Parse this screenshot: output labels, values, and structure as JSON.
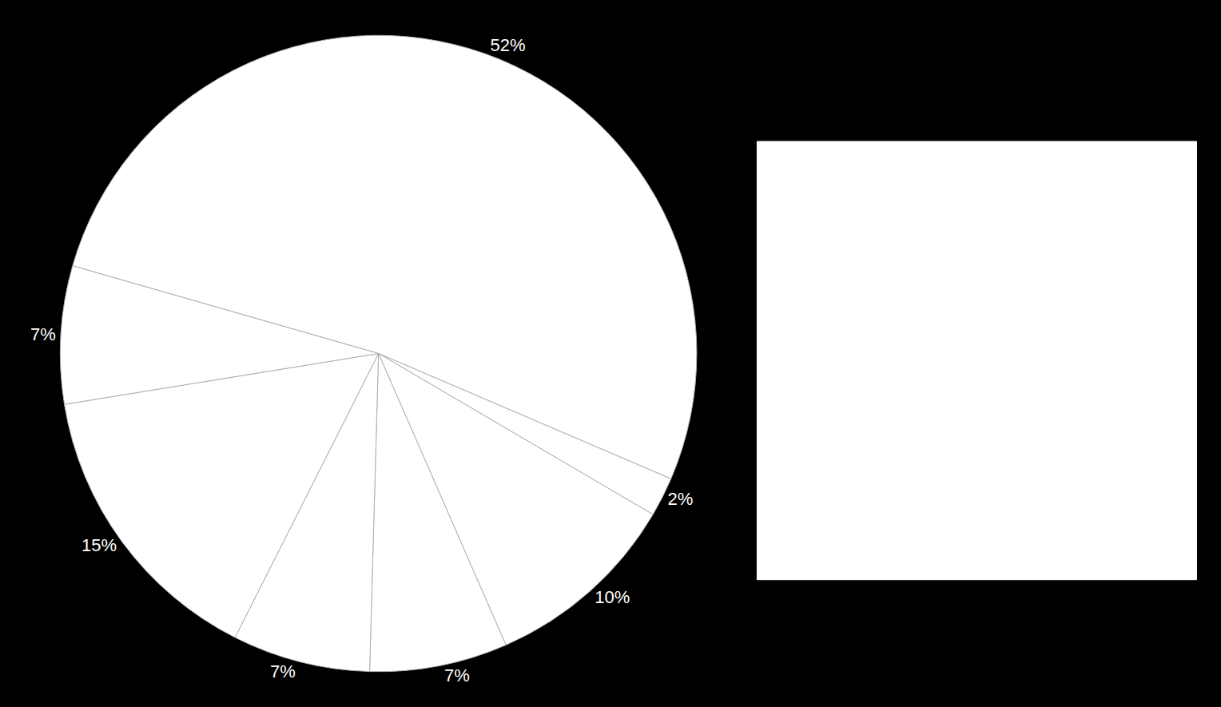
{
  "chart_data": {
    "type": "pie",
    "values": [
      52,
      2,
      10,
      7,
      7,
      15,
      7
    ],
    "value_labels": [
      "52%",
      "2%",
      "10%",
      "7%",
      "7%",
      "15%",
      "7%"
    ],
    "color": "#ffffff",
    "data_labels": true
  }
}
